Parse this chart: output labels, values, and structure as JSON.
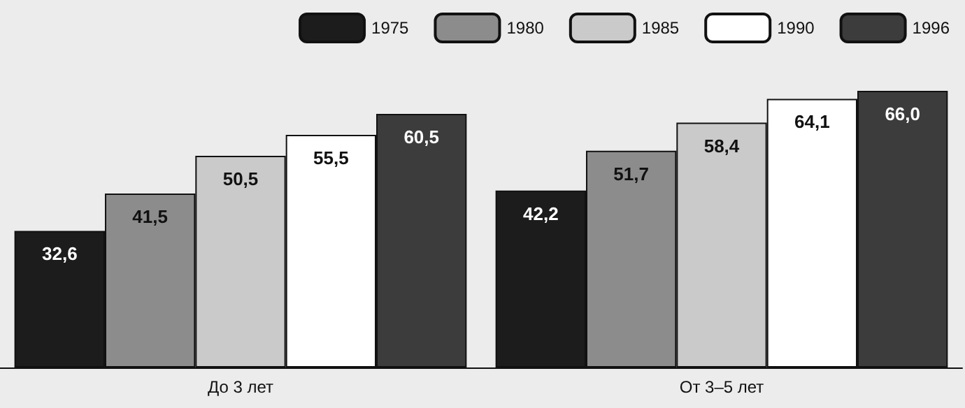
{
  "chart_data": {
    "type": "bar",
    "categories": [
      "До 3 лет",
      "От 3–5 лет"
    ],
    "series": [
      {
        "name": "1975",
        "color": "#1c1c1c",
        "values": [
          32.6,
          42.2
        ],
        "value_labels": [
          "32,6",
          "42,2"
        ]
      },
      {
        "name": "1980",
        "color": "#8c8c8c",
        "values": [
          41.5,
          51.7
        ],
        "value_labels": [
          "41,5",
          "51,7"
        ]
      },
      {
        "name": "1985",
        "color": "#cacaca",
        "values": [
          50.5,
          58.4
        ],
        "value_labels": [
          "50,5",
          "58,4"
        ]
      },
      {
        "name": "1990",
        "color": "#ffffff",
        "values": [
          55.5,
          64.1
        ],
        "value_labels": [
          "55,5",
          "64,1"
        ]
      },
      {
        "name": "1996",
        "color": "#3c3c3c",
        "values": [
          60.5,
          66.0
        ],
        "value_labels": [
          "60,5",
          "66,0"
        ]
      }
    ],
    "legend": "top right"
  }
}
